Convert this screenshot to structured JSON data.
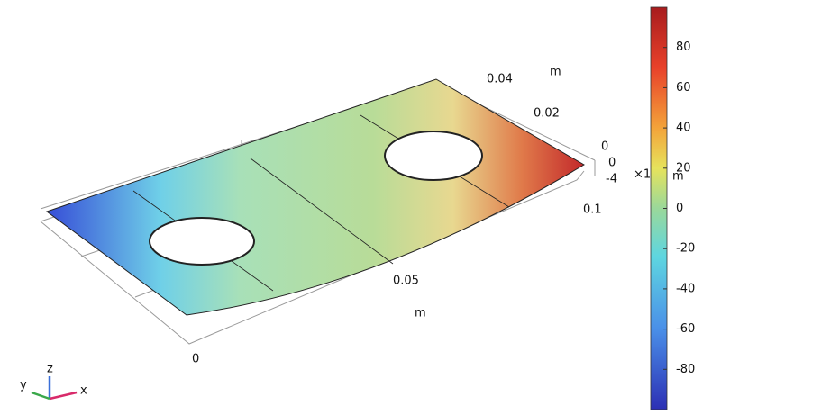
{
  "scene": {
    "labels": [
      "0.04",
      "m",
      "0.02",
      "0",
      "0",
      "-4",
      "×1",
      "m",
      "0.1",
      "0.05",
      "m",
      "0"
    ]
  },
  "triad": [
    "z",
    "y",
    "x"
  ],
  "colorbar": {
    "range": [
      -100,
      100
    ],
    "ticks": [
      80,
      60,
      40,
      20,
      0,
      -20,
      -40,
      -60,
      -80
    ]
  }
}
